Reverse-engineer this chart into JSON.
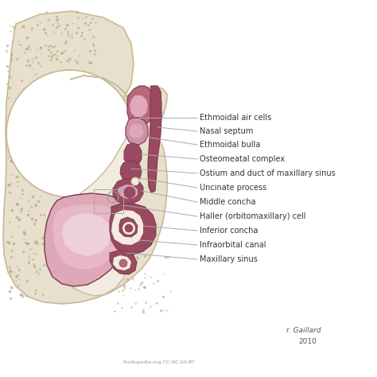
{
  "background_color": "#ffffff",
  "bone_fill": "#e8e0cc",
  "bone_edge": "#c8b896",
  "cavity_fill": "#f2ece0",
  "sinus_light": "#dea8b8",
  "sinus_medium": "#cc8fa8",
  "sinus_dark": "#9a4a60",
  "structure_fill": "#9a4a60",
  "structure_mid": "#b86878",
  "structure_edge": "#7a3848",
  "line_color": "#aaaaaa",
  "text_color": "#333333",
  "labels": [
    "Ethmoidal air cells",
    "Nasal septum",
    "Ethmoidal bulla",
    "Osteomeatal complex",
    "Ostium and duct of maxillary sinus",
    "Uncinate process",
    "Middle concha",
    "Haller (orbitomaxillary) cell",
    "Inferior concha",
    "Infraorbital canal",
    "Maxillary sinus"
  ],
  "font_size": 7.0,
  "signature_text": "r. Gaillard",
  "year_text": "2010",
  "watermark": "Radiopedia.org CC-NC-SA-BY"
}
